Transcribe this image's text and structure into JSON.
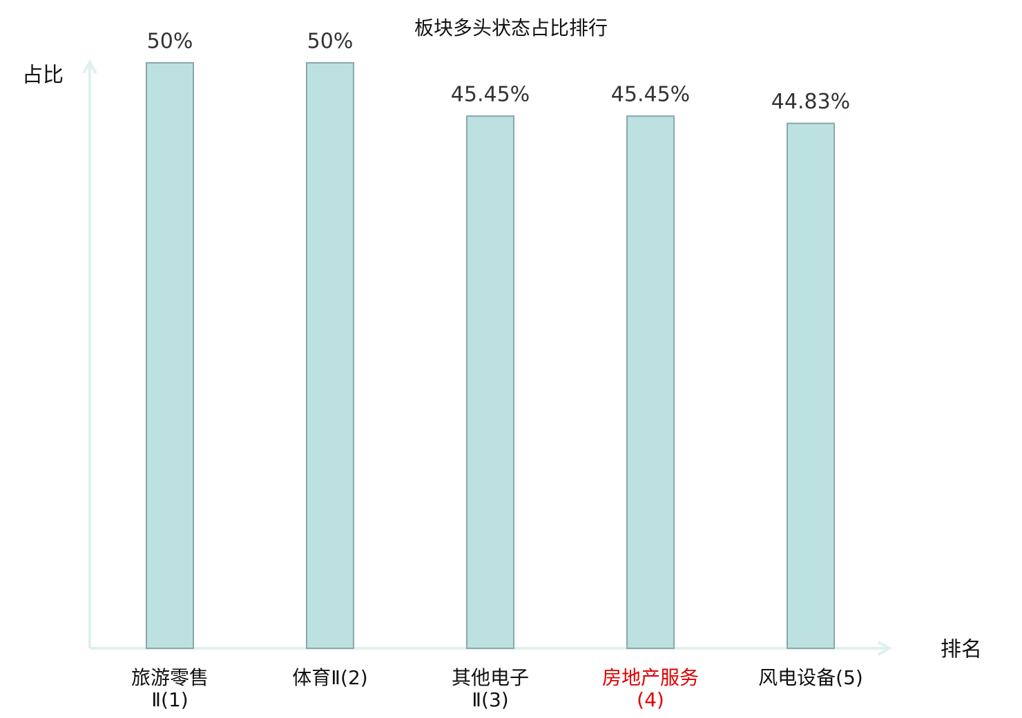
{
  "chart_data": {
    "type": "bar",
    "title": "板块多头状态占比排行",
    "y_label": "占比",
    "x_label": "排名",
    "categories": [
      "旅游零售Ⅱ(1)",
      "体育Ⅱ(2)",
      "其他电子Ⅱ(3)",
      "房地产服务(4)",
      "风电设备(5)"
    ],
    "values": [
      50,
      50,
      45.45,
      45.45,
      44.83
    ],
    "value_labels": [
      "50%",
      "50%",
      "45.45%",
      "45.45%",
      "44.83%"
    ],
    "color": "#bde0e1",
    "edge_color": "#88a7a8",
    "category_colors": [
      "#111111",
      "#111111",
      "#111111",
      "#e00000",
      "#111111"
    ],
    "ylim": [
      0,
      50
    ]
  }
}
